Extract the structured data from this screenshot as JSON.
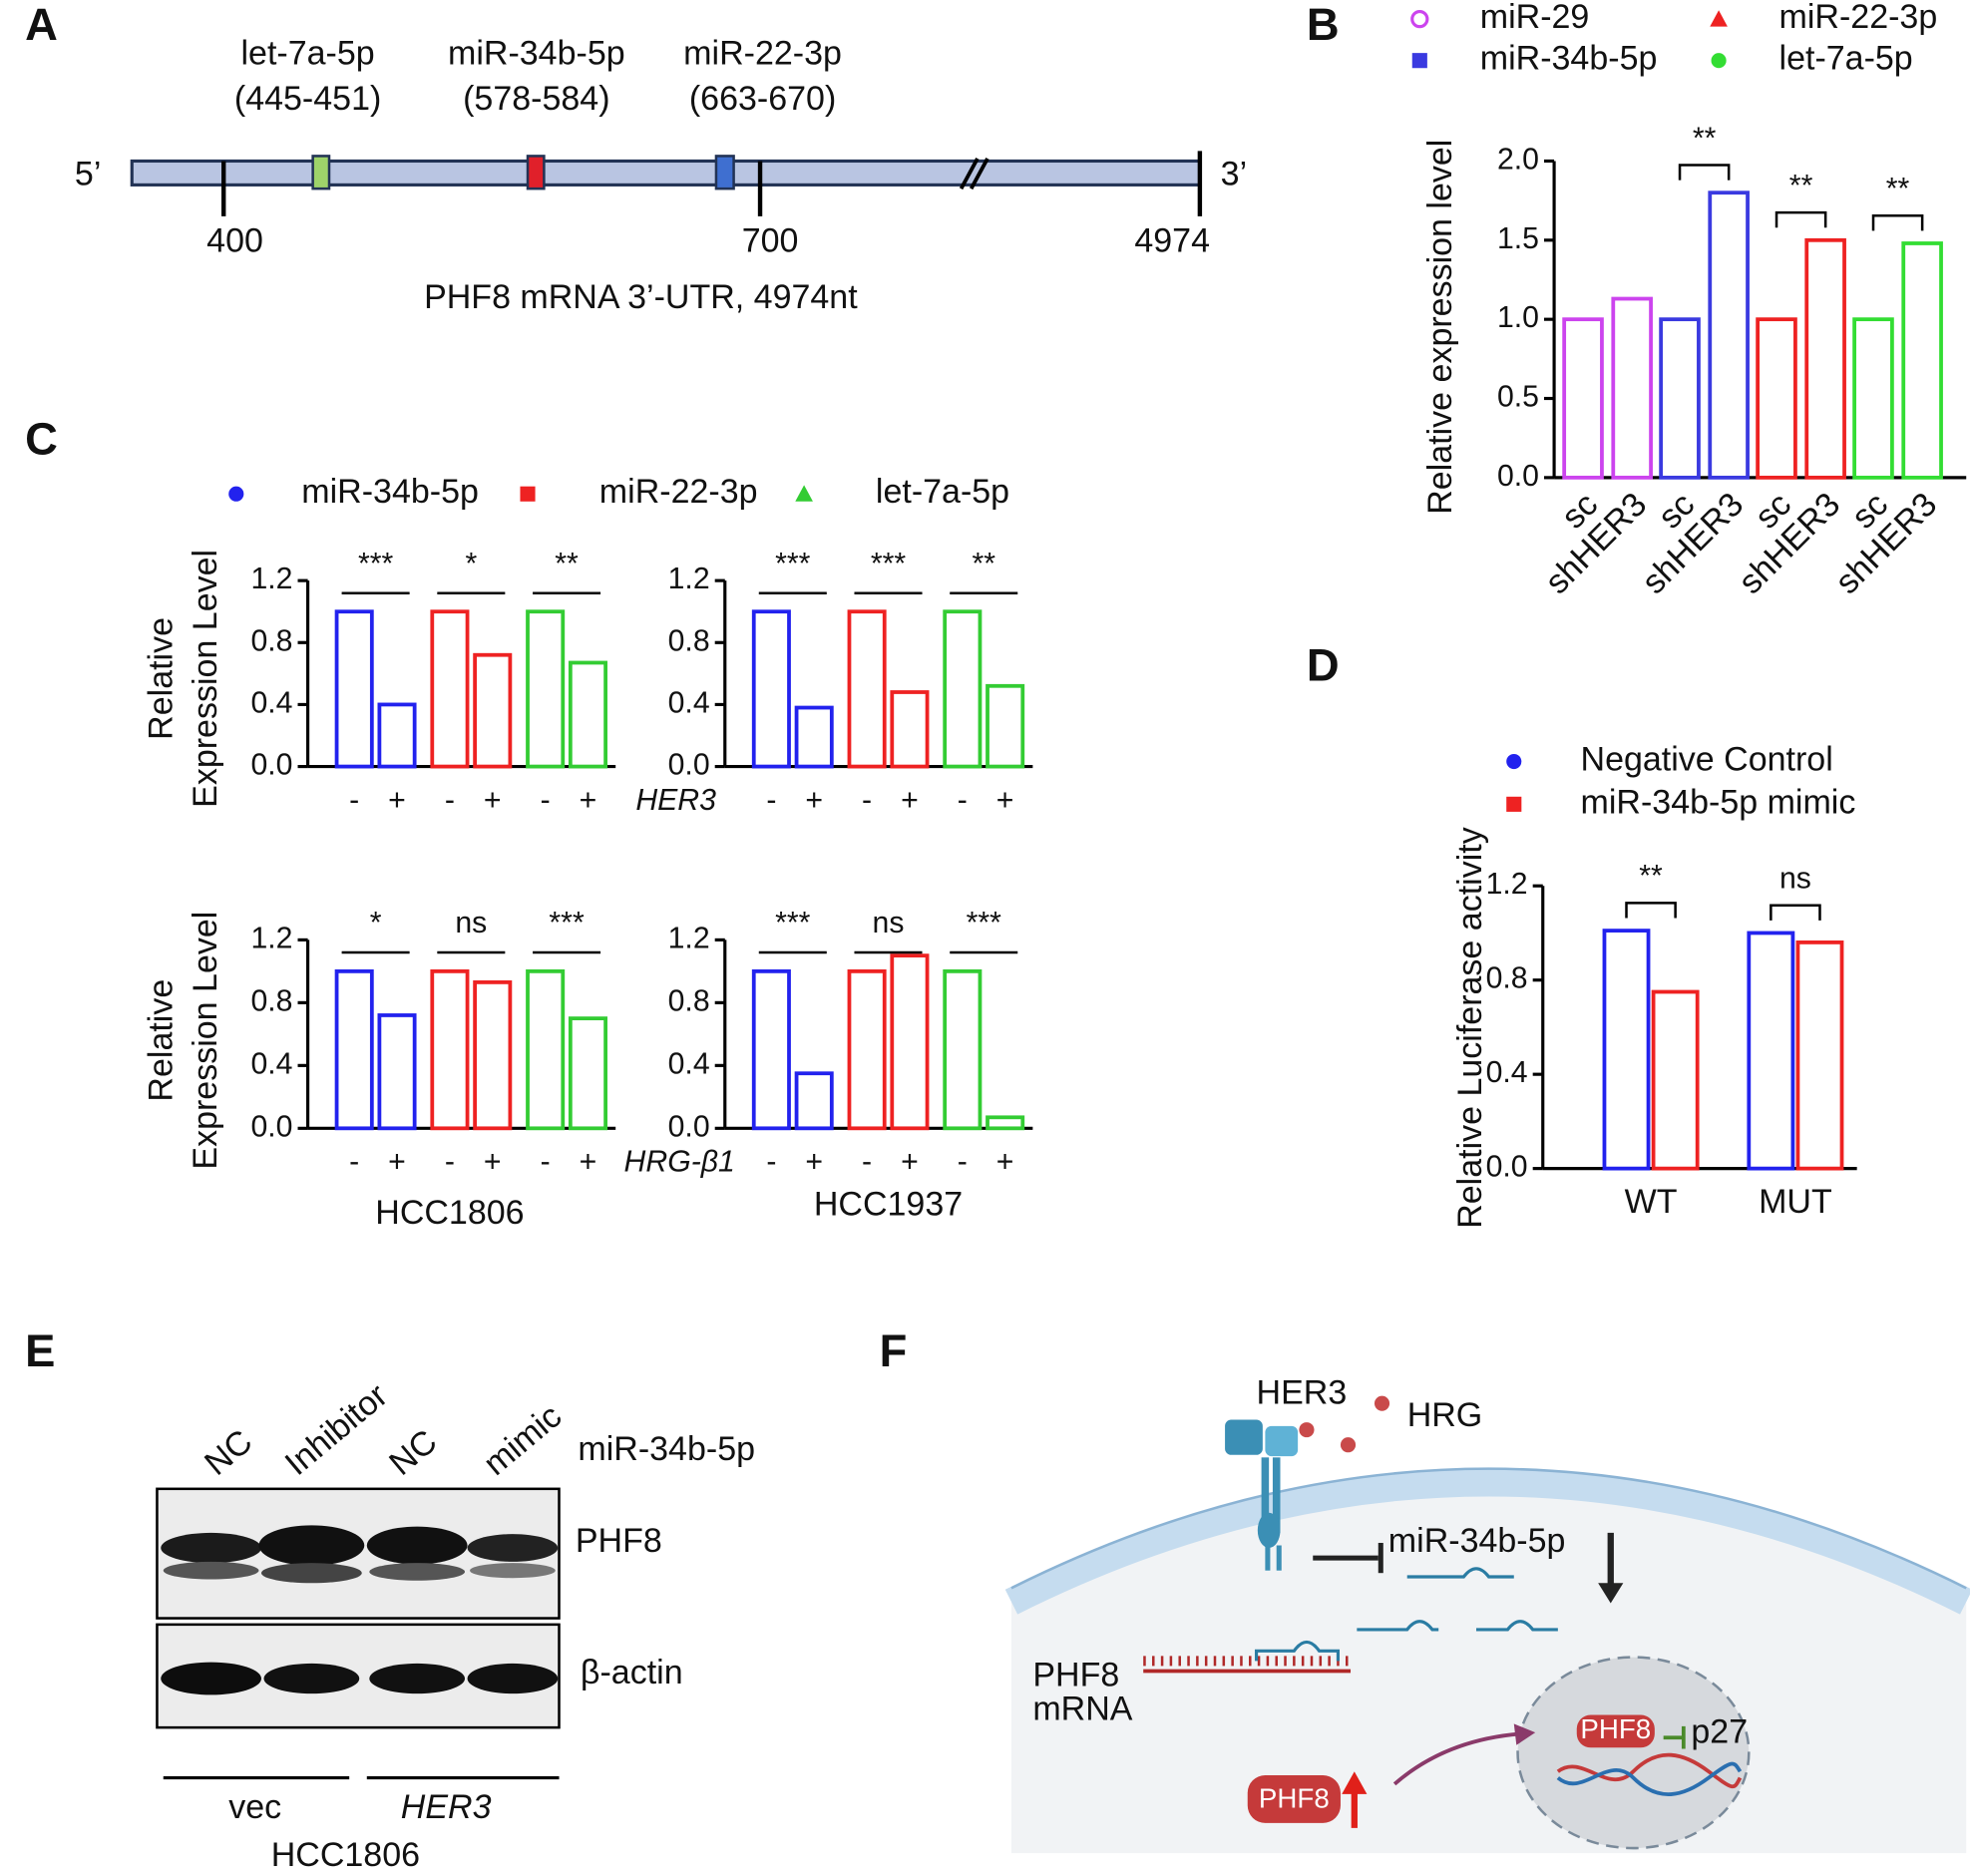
{
  "panel_labels": [
    "A",
    "B",
    "C",
    "D",
    "E",
    "F"
  ],
  "panel_a": {
    "sites": [
      {
        "name": "let-7a-5p",
        "range": "(445-451)"
      },
      {
        "name": "miR-34b-5p",
        "range": "(578-584)"
      },
      {
        "name": "miR-22-3p",
        "range": "(663-670)"
      }
    ],
    "ticks": [
      "400",
      "700",
      "4974"
    ],
    "five_prime": "5’",
    "three_prime": "3’",
    "caption": "PHF8 mRNA 3’-UTR, 4974nt"
  },
  "chart_data": [
    {
      "type": "bar",
      "ylabel": "Relative expression level",
      "categories": [
        "sc",
        "shHER3"
      ],
      "series": [
        {
          "name": "miR-29",
          "color": "#cc44ee",
          "marker": "circle-open",
          "values": [
            1.0,
            1.13
          ]
        },
        {
          "name": "miR-34b-5p",
          "color": "#3a3ae0",
          "marker": "square",
          "values": [
            1.0,
            1.8
          ]
        },
        {
          "name": "miR-22-3p",
          "color": "#ee2222",
          "marker": "triangle",
          "values": [
            1.0,
            1.5
          ]
        },
        {
          "name": "let-7a-5p",
          "color": "#33dd33",
          "marker": "circle",
          "values": [
            1.0,
            1.48
          ]
        }
      ],
      "annotations": [
        null,
        "**",
        "**",
        "**"
      ],
      "ylim": [
        0,
        2
      ],
      "yticks": [
        {
          "value": 0,
          "label": "0.0"
        },
        0.5,
        {
          "value": 1,
          "label": "1.0"
        },
        1.5,
        {
          "value": 2,
          "label": "2.0"
        }
      ]
    },
    {
      "type": "bar",
      "ylabel": [
        "Relative",
        "Expression Level"
      ],
      "categories": [
        "-",
        "+"
      ],
      "series": [
        {
          "name": "miR-34b-5p",
          "color": "#2222ee",
          "marker": "circle",
          "values": [
            1.0,
            0.4
          ]
        },
        {
          "name": "miR-22-3p",
          "color": "#ee2222",
          "marker": "square",
          "values": [
            1.0,
            0.72
          ]
        },
        {
          "name": "let-7a-5p",
          "color": "#33cc33",
          "marker": "triangle",
          "values": [
            1.0,
            0.67
          ]
        }
      ],
      "annotations": [
        "***",
        "*",
        "**"
      ],
      "treatment_label": "HER3",
      "ylim": [
        0,
        1.2
      ],
      "yticks": [
        {
          "value": 0,
          "label": "0.0"
        },
        0.4,
        0.8,
        1.2
      ]
    },
    {
      "type": "bar",
      "categories": [
        "-",
        "+"
      ],
      "series": [
        {
          "name": "miR-34b-5p",
          "color": "#2222ee",
          "values": [
            1.0,
            0.38
          ]
        },
        {
          "name": "miR-22-3p",
          "color": "#ee2222",
          "values": [
            1.0,
            0.48
          ]
        },
        {
          "name": "let-7a-5p",
          "color": "#33cc33",
          "values": [
            1.0,
            0.52
          ]
        }
      ],
      "annotations": [
        "***",
        "***",
        "**"
      ],
      "ylim": [
        0,
        1.2
      ],
      "yticks": [
        {
          "value": 0,
          "label": "0.0"
        },
        0.4,
        0.8,
        1.2
      ]
    },
    {
      "type": "bar",
      "ylabel": [
        "Relative",
        "Expression Level"
      ],
      "xlabel": "HCC1806",
      "categories": [
        "-",
        "+"
      ],
      "series": [
        {
          "name": "miR-34b-5p",
          "color": "#2222ee",
          "values": [
            1.0,
            0.72
          ]
        },
        {
          "name": "miR-22-3p",
          "color": "#ee2222",
          "values": [
            1.0,
            0.93
          ]
        },
        {
          "name": "let-7a-5p",
          "color": "#33cc33",
          "values": [
            1.0,
            0.7
          ]
        }
      ],
      "annotations": [
        "*",
        "ns",
        "***"
      ],
      "treatment_label": "HRG-β1",
      "ylim": [
        0,
        1.2
      ],
      "yticks": [
        {
          "value": 0,
          "label": "0.0"
        },
        0.4,
        0.8,
        1.2
      ]
    },
    {
      "type": "bar",
      "xlabel": "HCC1937",
      "categories": [
        "-",
        "+"
      ],
      "series": [
        {
          "name": "miR-34b-5p",
          "color": "#2222ee",
          "values": [
            1.0,
            0.35
          ]
        },
        {
          "name": "miR-22-3p",
          "color": "#ee2222",
          "values": [
            1.0,
            1.1
          ]
        },
        {
          "name": "let-7a-5p",
          "color": "#33cc33",
          "values": [
            1.0,
            0.07
          ]
        }
      ],
      "annotations": [
        "***",
        "ns",
        "***"
      ],
      "ylim": [
        0,
        1.2
      ],
      "yticks": [
        {
          "value": 0,
          "label": "0.0"
        },
        0.4,
        0.8,
        1.2
      ]
    },
    {
      "type": "bar",
      "ylabel": "Relative Luciferase activity",
      "categories": [
        "WT",
        "MUT"
      ],
      "series": [
        {
          "name": "Negative Control",
          "color": "#2222ee",
          "marker": "circle",
          "values": [
            1.01,
            1.0
          ]
        },
        {
          "name": "miR-34b-5p mimic",
          "color": "#ee2222",
          "marker": "square",
          "values": [
            0.75,
            0.96
          ]
        }
      ],
      "annotations": [
        "**",
        "ns"
      ],
      "ylim": [
        0,
        1.2
      ],
      "yticks": [
        {
          "value": 0,
          "label": "0.0"
        },
        0.4,
        0.8,
        1.2
      ]
    }
  ],
  "panel_e": {
    "lanes": [
      "NC",
      "Inhibitor",
      "NC",
      "mimic"
    ],
    "lane_title": "miR-34b-5p",
    "rows": [
      "PHF8",
      "β-actin"
    ],
    "groups": [
      "vec",
      "HER3"
    ],
    "cell_line": "HCC1806"
  },
  "panel_f": {
    "receptor": "HER3",
    "ligand": "HRG",
    "mirna": "miR-34b-5p",
    "mrna": [
      "PHF8",
      "mRNA"
    ],
    "nuclear_protein": "PHF8",
    "target": "p27",
    "protein": "PHF8"
  }
}
